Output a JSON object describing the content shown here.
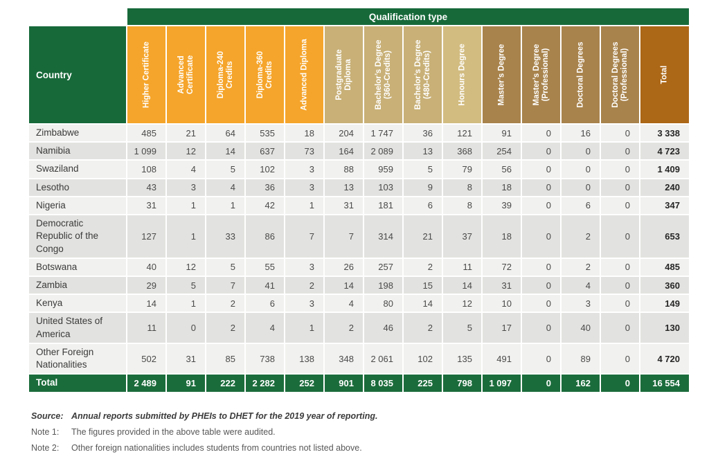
{
  "colors": {
    "header_green": "#17693A",
    "total_row_green": "#1B6C3B",
    "orange": "#F5A52B",
    "tan": "#C8B077",
    "honours_tan": "#D2BC80",
    "brown": "#A8834C",
    "total_col_brown": "#AC6717",
    "row_light": "#F1F1EF",
    "row_dark": "#E2E2E0"
  },
  "table": {
    "qualification_type_header": "Qualification type",
    "country_header": "Country",
    "columns": [
      {
        "label": "Higher Certificate",
        "color": "#F5A52B"
      },
      {
        "label": "Advanced\nCertificate",
        "color": "#F5A52B"
      },
      {
        "label": "Diploma-240\nCredits",
        "color": "#F5A52B"
      },
      {
        "label": "Diploma-360\nCredits",
        "color": "#F5A52B"
      },
      {
        "label": "Advanced Diploma",
        "color": "#F5A52B"
      },
      {
        "label": "Postgraduate\nDiploma",
        "color": "#C8B077"
      },
      {
        "label": "Bachelor’s Degree\n(360-Credits)",
        "color": "#C8B077"
      },
      {
        "label": "Bachelor’s Degree\n(480-Credits)",
        "color": "#C8B077"
      },
      {
        "label": "Honours Degree",
        "color": "#D2BC80"
      },
      {
        "label": "Master’s Degree",
        "color": "#A8834C"
      },
      {
        "label": "Master’s Degree\n(Professional)",
        "color": "#A8834C"
      },
      {
        "label": "Doctoral Degrees",
        "color": "#A8834C"
      },
      {
        "label": "Doctoral Degrees\n(Professional)",
        "color": "#A8834C"
      },
      {
        "label": "Total",
        "color": "#AC6717",
        "is_total": true
      }
    ],
    "rows": [
      {
        "country": "Zimbabwe",
        "values": [
          "485",
          "21",
          "64",
          "535",
          "18",
          "204",
          "1 747",
          "36",
          "121",
          "91",
          "0",
          "16",
          "0",
          "3 338"
        ]
      },
      {
        "country": "Namibia",
        "values": [
          "1 099",
          "12",
          "14",
          "637",
          "73",
          "164",
          "2 089",
          "13",
          "368",
          "254",
          "0",
          "0",
          "0",
          "4 723"
        ]
      },
      {
        "country": "Swaziland",
        "values": [
          "108",
          "4",
          "5",
          "102",
          "3",
          "88",
          "959",
          "5",
          "79",
          "56",
          "0",
          "0",
          "0",
          "1 409"
        ]
      },
      {
        "country": "Lesotho",
        "values": [
          "43",
          "3",
          "4",
          "36",
          "3",
          "13",
          "103",
          "9",
          "8",
          "18",
          "0",
          "0",
          "0",
          "240"
        ]
      },
      {
        "country": "Nigeria",
        "values": [
          "31",
          "1",
          "1",
          "42",
          "1",
          "31",
          "181",
          "6",
          "8",
          "39",
          "0",
          "6",
          "0",
          "347"
        ]
      },
      {
        "country": "Democratic Republic of the Congo",
        "values": [
          "127",
          "1",
          "33",
          "86",
          "7",
          "7",
          "314",
          "21",
          "37",
          "18",
          "0",
          "2",
          "0",
          "653"
        ]
      },
      {
        "country": "Botswana",
        "values": [
          "40",
          "12",
          "5",
          "55",
          "3",
          "26",
          "257",
          "2",
          "11",
          "72",
          "0",
          "2",
          "0",
          "485"
        ]
      },
      {
        "country": "Zambia",
        "values": [
          "29",
          "5",
          "7",
          "41",
          "2",
          "14",
          "198",
          "15",
          "14",
          "31",
          "0",
          "4",
          "0",
          "360"
        ]
      },
      {
        "country": "Kenya",
        "values": [
          "14",
          "1",
          "2",
          "6",
          "3",
          "4",
          "80",
          "14",
          "12",
          "10",
          "0",
          "3",
          "0",
          "149"
        ]
      },
      {
        "country": "United States of America",
        "values": [
          "11",
          "0",
          "2",
          "4",
          "1",
          "2",
          "46",
          "2",
          "5",
          "17",
          "0",
          "40",
          "0",
          "130"
        ]
      },
      {
        "country": "Other Foreign Nationalities",
        "values": [
          "502",
          "31",
          "85",
          "738",
          "138",
          "348",
          "2 061",
          "102",
          "135",
          "491",
          "0",
          "89",
          "0",
          "4 720"
        ]
      }
    ],
    "total_row": {
      "label": "Total",
      "values": [
        "2 489",
        "91",
        "222",
        "2 282",
        "252",
        "901",
        "8 035",
        "225",
        "798",
        "1 097",
        "0",
        "162",
        "0",
        "16 554"
      ]
    }
  },
  "footnotes": [
    {
      "label": "Source:",
      "text": "Annual reports submitted by PHEIs to DHET for the 2019 year of reporting.",
      "emphasis": true
    },
    {
      "label": "Note 1:",
      "text": "The figures provided in the above table were audited.",
      "emphasis": false
    },
    {
      "label": "Note 2:",
      "text": "Other foreign nationalities includes students from countries not listed above.",
      "emphasis": false
    }
  ]
}
